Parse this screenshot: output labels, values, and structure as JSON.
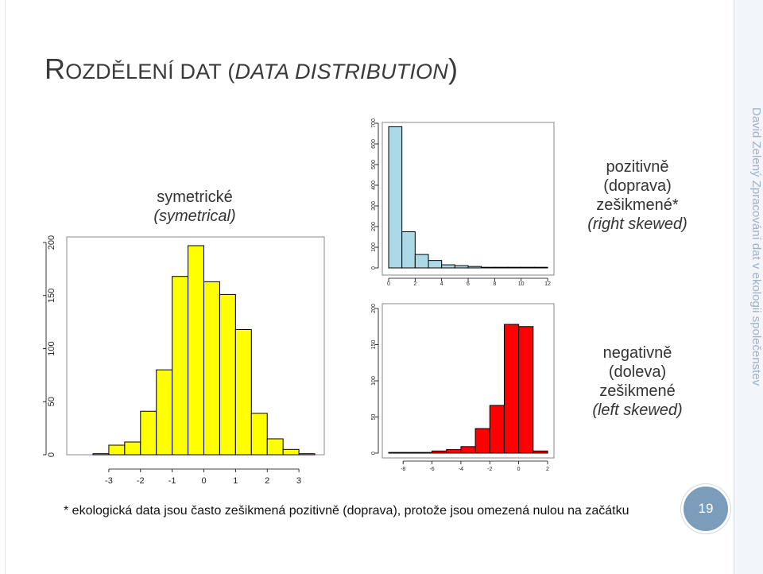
{
  "slide": {
    "title_first": "R",
    "title_rest": "OZDĚLENÍ DAT (",
    "title_italic": "DATA DISTRIBUTION",
    "title_end": ")",
    "sidebar_text": "David Zelený     Zpracování dat v ekologii společenstev",
    "label_sym_1": "symetrické",
    "label_sym_2": "(symetrical)",
    "label_right_1": "pozitivně",
    "label_right_2": "(doprava)",
    "label_right_3": "zešikmené*",
    "label_right_4": "(right skewed)",
    "label_left_1": "negativně",
    "label_left_2": "(doleva)",
    "label_left_3": "zešikmené",
    "label_left_4": "(left skewed)",
    "footnote": "* ekologická data jsou často zešikmená pozitivně (doprava), protože jsou omezená nulou na začátku",
    "page_number": "19"
  },
  "colors": {
    "symmetric": "#ffff00",
    "right": "#add8e6",
    "left": "#ff0000"
  },
  "chart_data": [
    {
      "type": "bar",
      "id": "symmetric",
      "x_ticks": [
        "-3",
        "-2",
        "-1",
        "0",
        "1",
        "2",
        "3"
      ],
      "y_ticks": [
        "0",
        "50",
        "100",
        "150",
        "200"
      ],
      "ylim": [
        0,
        200
      ],
      "bins": [
        [
          -3.5,
          -3
        ],
        [
          -3,
          -2.5
        ],
        [
          -2.5,
          -2
        ],
        [
          -2,
          -1.5
        ],
        [
          -1.5,
          -1
        ],
        [
          -1,
          -0.5
        ],
        [
          -0.5,
          0
        ],
        [
          0,
          0.5
        ],
        [
          0.5,
          1
        ],
        [
          1,
          1.5
        ],
        [
          1.5,
          2
        ],
        [
          2,
          2.5
        ],
        [
          2.5,
          3
        ],
        [
          3,
          3.5
        ]
      ],
      "values": [
        1,
        9,
        12,
        41,
        80,
        168,
        197,
        163,
        151,
        118,
        39,
        15,
        5,
        1
      ]
    },
    {
      "type": "bar",
      "id": "right-skewed",
      "x_ticks": [
        "0",
        "2",
        "4",
        "6",
        "8",
        "10",
        "12"
      ],
      "y_ticks": [
        "0",
        "100",
        "200",
        "300",
        "400",
        "500",
        "600",
        "700"
      ],
      "ylim": [
        0,
        700
      ],
      "bins": [
        [
          0,
          1
        ],
        [
          1,
          2
        ],
        [
          2,
          3
        ],
        [
          3,
          4
        ],
        [
          4,
          5
        ],
        [
          5,
          6
        ],
        [
          6,
          7
        ],
        [
          7,
          8
        ],
        [
          8,
          9
        ],
        [
          9,
          10
        ],
        [
          10,
          11
        ],
        [
          11,
          12
        ]
      ],
      "values": [
        683,
        175,
        65,
        36,
        15,
        11,
        7,
        2,
        3,
        2,
        1,
        1
      ]
    },
    {
      "type": "bar",
      "id": "left-skewed",
      "x_ticks": [
        "-8",
        "-6",
        "-4",
        "-2",
        "0",
        "2"
      ],
      "y_ticks": [
        "0",
        "50",
        "100",
        "150",
        "200"
      ],
      "ylim": [
        0,
        200
      ],
      "bins": [
        [
          -9,
          -8
        ],
        [
          -8,
          -7
        ],
        [
          -7,
          -6
        ],
        [
          -6,
          -5
        ],
        [
          -5,
          -4
        ],
        [
          -4,
          -3
        ],
        [
          -3,
          -2
        ],
        [
          -2,
          -1
        ],
        [
          -1,
          0
        ],
        [
          0,
          1
        ],
        [
          1,
          2
        ]
      ],
      "values": [
        1,
        1,
        1,
        3,
        5,
        9,
        34,
        66,
        178,
        175,
        3
      ]
    }
  ]
}
